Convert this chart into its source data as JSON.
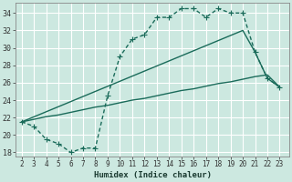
{
  "xlabel": "Humidex (Indice chaleur)",
  "bg_color": "#cce8e0",
  "grid_color": "#ffffff",
  "line_color": "#1a6b5a",
  "line1_x": [
    2,
    3,
    4,
    5,
    6,
    7,
    8,
    9,
    10,
    11,
    12,
    13,
    14,
    15,
    16,
    17,
    18,
    19,
    20,
    21,
    22,
    23
  ],
  "line1_y": [
    21.5,
    21.0,
    19.5,
    19.0,
    18.0,
    18.5,
    18.5,
    24.5,
    29.0,
    31.0,
    31.5,
    33.5,
    33.5,
    34.5,
    34.5,
    33.5,
    34.5,
    34.0,
    34.0,
    29.5,
    26.5,
    25.5
  ],
  "line2_x": [
    2,
    3,
    4,
    5,
    6,
    7,
    8,
    9,
    10,
    11,
    12,
    13,
    14,
    15,
    16,
    17,
    18,
    19,
    20,
    21,
    22,
    23
  ],
  "line2_y": [
    21.5,
    21.8,
    22.1,
    22.3,
    22.6,
    22.9,
    23.2,
    23.4,
    23.7,
    24.0,
    24.2,
    24.5,
    24.8,
    25.1,
    25.3,
    25.6,
    25.9,
    26.1,
    26.4,
    26.7,
    26.9,
    25.5
  ],
  "line3_x": [
    2,
    20,
    21,
    22,
    23
  ],
  "line3_y": [
    21.5,
    32.0,
    29.5,
    26.5,
    25.5
  ],
  "ylim": [
    17.5,
    35.2
  ],
  "xlim": [
    1.5,
    23.8
  ],
  "yticks": [
    18,
    20,
    22,
    24,
    26,
    28,
    30,
    32,
    34
  ],
  "xticks": [
    2,
    3,
    4,
    5,
    6,
    7,
    8,
    9,
    10,
    11,
    12,
    13,
    14,
    15,
    16,
    17,
    18,
    19,
    20,
    21,
    22,
    23
  ]
}
